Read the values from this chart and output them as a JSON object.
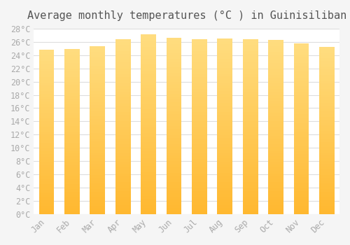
{
  "title": "Average monthly temperatures (°C ) in Guinisiliban",
  "months": [
    "Jan",
    "Feb",
    "Mar",
    "Apr",
    "May",
    "Jun",
    "Jul",
    "Aug",
    "Sep",
    "Oct",
    "Nov",
    "Dec"
  ],
  "temperatures": [
    24.8,
    24.9,
    25.4,
    26.4,
    27.1,
    26.6,
    26.4,
    26.5,
    26.4,
    26.3,
    25.8,
    25.2
  ],
  "bar_color_bottom": "#FFB830",
  "bar_color_top": "#FFDD80",
  "background_color": "#F5F5F5",
  "plot_bg_color": "#FFFFFF",
  "grid_color": "#DDDDDD",
  "ytick_labels": [
    "0°C",
    "2°C",
    "4°C",
    "6°C",
    "8°C",
    "10°C",
    "12°C",
    "14°C",
    "16°C",
    "18°C",
    "20°C",
    "22°C",
    "24°C",
    "26°C",
    "28°C"
  ],
  "ytick_values": [
    0,
    2,
    4,
    6,
    8,
    10,
    12,
    14,
    16,
    18,
    20,
    22,
    24,
    26,
    28
  ],
  "ylim": [
    0,
    28
  ],
  "title_fontsize": 11,
  "tick_fontsize": 8.5,
  "tick_color": "#AAAAAA",
  "label_font": "monospace",
  "bar_width": 0.6,
  "num_segments": 60
}
